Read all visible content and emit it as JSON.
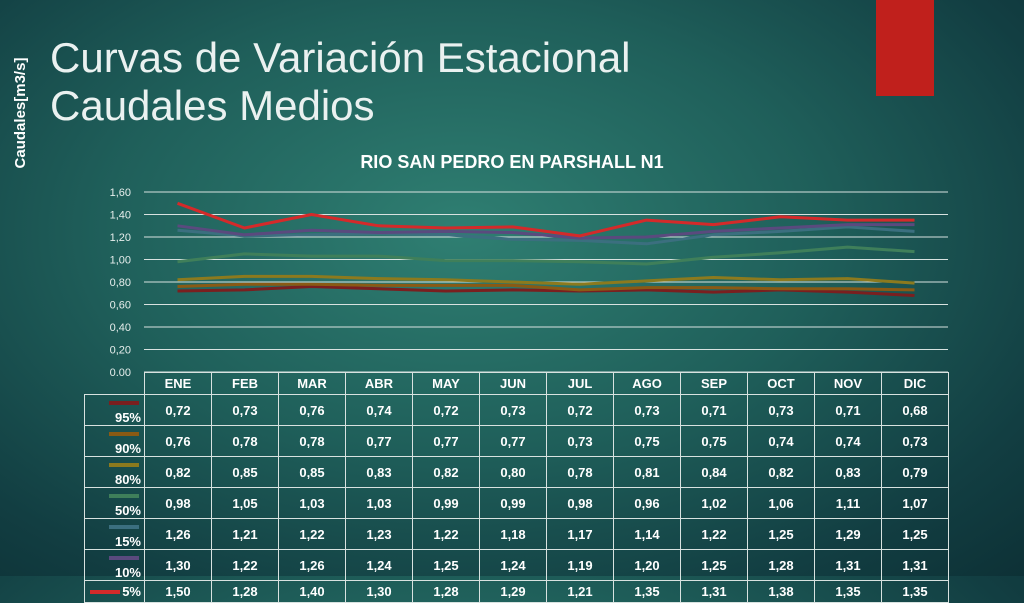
{
  "slide": {
    "title_line1": "Curvas de Variación Estacional",
    "title_line2": "Caudales Medios",
    "accent_color": "#c0201c"
  },
  "chart_data": {
    "type": "line",
    "title": "RIO SAN PEDRO EN PARSHALL N1",
    "ylabel": "Caudales[m3/s]",
    "ylim": [
      0,
      1.6
    ],
    "yticks": [
      "0.00",
      "0,20",
      "0,40",
      "0,60",
      "0,80",
      "1,00",
      "1,20",
      "1,40",
      "1,60"
    ],
    "grid": true,
    "legend": "data-table",
    "categories": [
      "ENE",
      "FEB",
      "MAR",
      "ABR",
      "MAY",
      "JUN",
      "JUL",
      "AGO",
      "SEP",
      "OCT",
      "NOV",
      "DIC"
    ],
    "series": [
      {
        "name": "95%",
        "color": "#7a1f1f",
        "values": [
          0.72,
          0.73,
          0.76,
          0.74,
          0.72,
          0.73,
          0.72,
          0.73,
          0.71,
          0.73,
          0.71,
          0.68
        ],
        "labels": [
          "0,72",
          "0,73",
          "0,76",
          "0,74",
          "0,72",
          "0,73",
          "0,72",
          "0,73",
          "0,71",
          "0,73",
          "0,71",
          "0,68"
        ]
      },
      {
        "name": "90%",
        "color": "#8a5a14",
        "values": [
          0.76,
          0.78,
          0.78,
          0.77,
          0.77,
          0.77,
          0.73,
          0.75,
          0.75,
          0.74,
          0.74,
          0.73
        ],
        "labels": [
          "0,76",
          "0,78",
          "0,78",
          "0,77",
          "0,77",
          "0,77",
          "0,73",
          "0,75",
          "0,75",
          "0,74",
          "0,74",
          "0,73"
        ]
      },
      {
        "name": "80%",
        "color": "#8c7a1e",
        "values": [
          0.82,
          0.85,
          0.85,
          0.83,
          0.82,
          0.8,
          0.78,
          0.81,
          0.84,
          0.82,
          0.83,
          0.79
        ],
        "labels": [
          "0,82",
          "0,85",
          "0,85",
          "0,83",
          "0,82",
          "0,80",
          "0,78",
          "0,81",
          "0,84",
          "0,82",
          "0,83",
          "0,79"
        ]
      },
      {
        "name": "50%",
        "color": "#3f7f5a",
        "values": [
          0.98,
          1.05,
          1.03,
          1.03,
          0.99,
          0.99,
          0.98,
          0.96,
          1.02,
          1.06,
          1.11,
          1.07
        ],
        "labels": [
          "0,98",
          "1,05",
          "1,03",
          "1,03",
          "0,99",
          "0,99",
          "0,98",
          "0,96",
          "1,02",
          "1,06",
          "1,11",
          "1,07"
        ]
      },
      {
        "name": "15%",
        "color": "#3b6f7f",
        "values": [
          1.26,
          1.21,
          1.22,
          1.23,
          1.22,
          1.18,
          1.17,
          1.14,
          1.22,
          1.25,
          1.29,
          1.25
        ],
        "labels": [
          "1,26",
          "1,21",
          "1,22",
          "1,23",
          "1,22",
          "1,18",
          "1,17",
          "1,14",
          "1,22",
          "1,25",
          "1,29",
          "1,25"
        ]
      },
      {
        "name": "10%",
        "color": "#5a4a7e",
        "values": [
          1.3,
          1.22,
          1.26,
          1.24,
          1.25,
          1.24,
          1.19,
          1.2,
          1.25,
          1.28,
          1.31,
          1.31
        ],
        "labels": [
          "1,30",
          "1,22",
          "1,26",
          "1,24",
          "1,25",
          "1,24",
          "1,19",
          "1,20",
          "1,25",
          "1,28",
          "1,31",
          "1,31"
        ]
      },
      {
        "name": "5%",
        "color": "#d42a2a",
        "values": [
          1.5,
          1.28,
          1.4,
          1.3,
          1.28,
          1.29,
          1.21,
          1.35,
          1.31,
          1.38,
          1.35,
          1.35
        ],
        "labels": [
          "1,50",
          "1,28",
          "1,40",
          "1,30",
          "1,28",
          "1,29",
          "1,21",
          "1,35",
          "1,31",
          "1,38",
          "1,35",
          "1,35"
        ]
      }
    ]
  }
}
